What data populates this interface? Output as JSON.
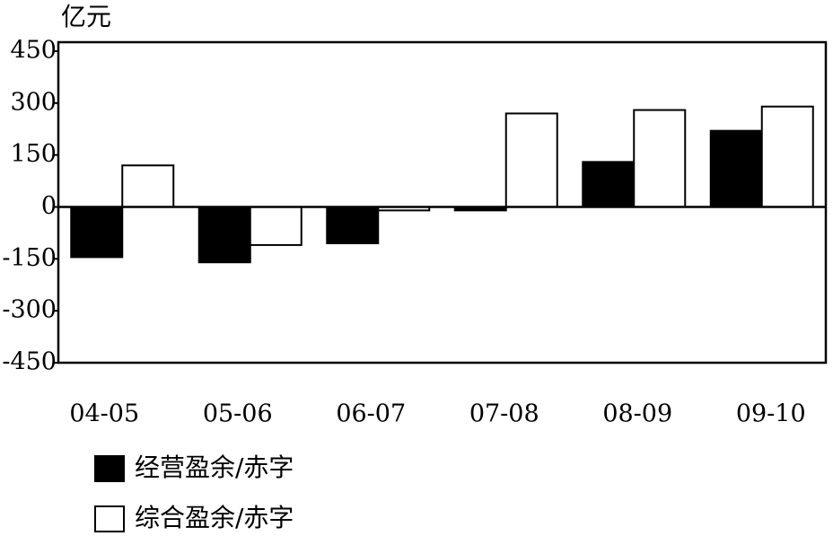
{
  "chart_data": {
    "type": "bar",
    "unit_label": "亿元",
    "categories": [
      "04-05",
      "05-06",
      "06-07",
      "07-08",
      "08-09",
      "09-10"
    ],
    "series": [
      {
        "name": "经营盈余/赤字",
        "color": "#000000",
        "values": [
          -145,
          -160,
          -105,
          -10,
          130,
          220
        ]
      },
      {
        "name": "综合盈余/赤字",
        "color": "#ffffff",
        "values": [
          120,
          -110,
          -10,
          270,
          280,
          290
        ]
      }
    ],
    "ylim": [
      -450,
      450
    ],
    "yticks": [
      -450,
      -300,
      -150,
      0,
      150,
      300,
      450
    ]
  }
}
